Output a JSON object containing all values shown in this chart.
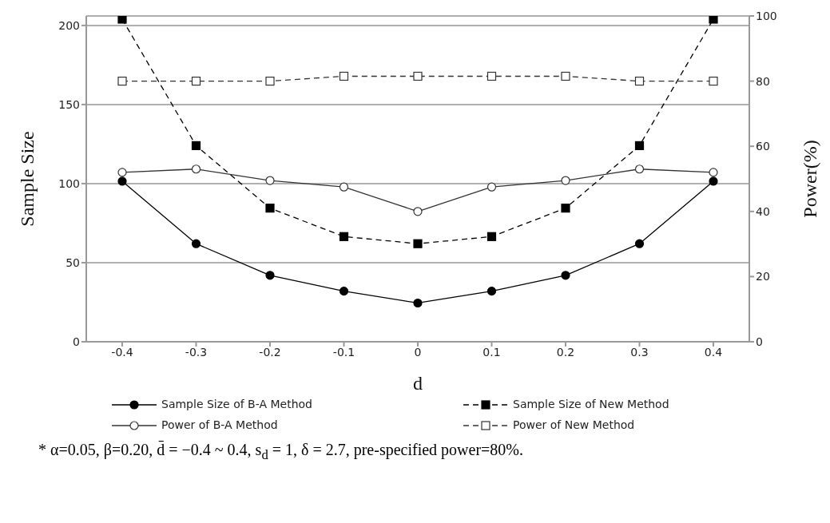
{
  "chart_data": {
    "type": "line",
    "xlabel": "d",
    "ylabel": "Sample Size",
    "y2label": "Power(%)",
    "categories": [
      "-0.4",
      "-0.3",
      "-0.2",
      "-0.1",
      "0",
      "0.1",
      "0.2",
      "0.3",
      "0.4"
    ],
    "series": [
      {
        "name": "Sample Size of B-A Method",
        "color": "#000000",
        "marker": "circle",
        "line_style": "solid",
        "values": [
          101.5,
          62,
          42,
          32,
          24.5,
          32,
          42,
          62,
          101.5
        ]
      },
      {
        "name": "Sample Size of New Method",
        "color": "#000000",
        "marker": "square",
        "line_style": "dashed",
        "values": [
          204,
          124,
          84.5,
          66.5,
          62,
          66.5,
          84.5,
          124,
          204
        ]
      },
      {
        "name": "Power of B-A Method",
        "color": "#333333",
        "marker": "circle",
        "line_style": "solid",
        "axis": "y2",
        "values": [
          52,
          53,
          49.5,
          47.5,
          40,
          47.5,
          49.5,
          53,
          52
        ]
      },
      {
        "name": "Power of New Method",
        "color": "#333333",
        "marker": "square",
        "line_style": "dashed",
        "axis": "y2",
        "values": [
          80,
          80,
          80,
          81.5,
          81.5,
          81.5,
          81.5,
          80,
          80
        ]
      }
    ],
    "ylim": [
      0,
      206
    ],
    "yticks": [
      0,
      50,
      100,
      150,
      200
    ],
    "y2lim": [
      0,
      100
    ],
    "y2ticks": [
      0,
      20,
      40,
      60,
      80,
      100
    ],
    "grid": "y",
    "legend": "bottom",
    "annotations": [
      "* α=0.05,  β=0.20,  d̄ = −0.4 ~ 0.4,  s$_{d}$ = 1,  δ = 2.7, pre-specified power=80%."
    ]
  }
}
